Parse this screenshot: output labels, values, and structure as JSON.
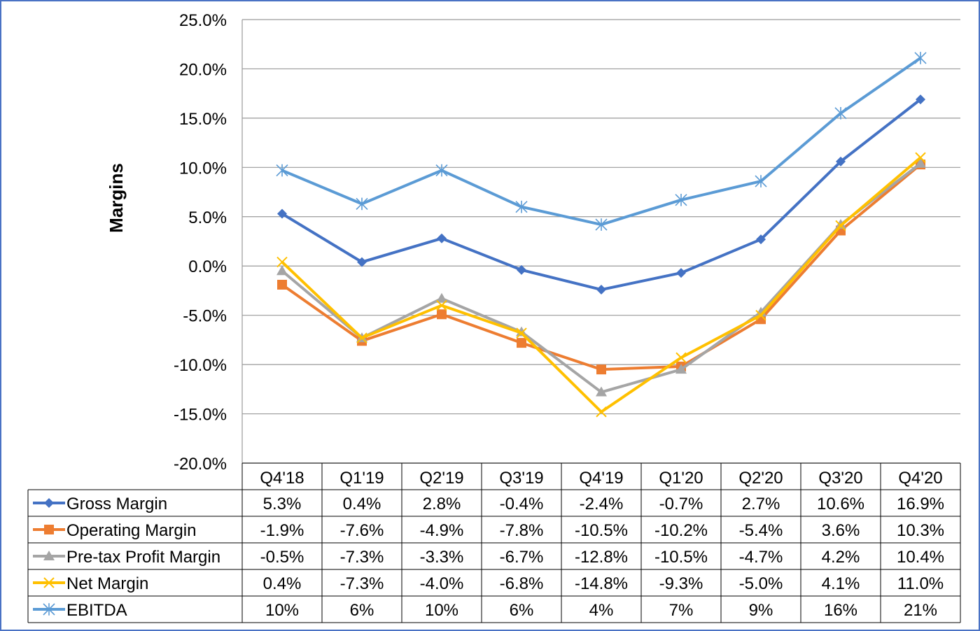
{
  "chart_data": {
    "type": "line",
    "ylabel": "Margins",
    "xlabel": "",
    "ylim": [
      -20,
      25
    ],
    "ytick_step": 5,
    "ytick_labels": [
      "25.0%",
      "20.0%",
      "15.0%",
      "10.0%",
      "5.0%",
      "0.0%",
      "-5.0%",
      "-10.0%",
      "-15.0%",
      "-20.0%"
    ],
    "grid": true,
    "legend_placement": "data table below chart",
    "categories": [
      "Q4'18",
      "Q1'19",
      "Q2'19",
      "Q3'19",
      "Q4'19",
      "Q1'20",
      "Q2'20",
      "Q3'20",
      "Q4'20"
    ],
    "series": [
      {
        "name": "Gross Margin",
        "color": "#4472c4",
        "marker": "diamond",
        "values": [
          5.3,
          0.4,
          2.8,
          -0.4,
          -2.4,
          -0.7,
          2.7,
          10.6,
          16.9
        ],
        "labels": [
          "5.3%",
          "0.4%",
          "2.8%",
          "-0.4%",
          "-2.4%",
          "-0.7%",
          "2.7%",
          "10.6%",
          "16.9%"
        ]
      },
      {
        "name": "Operating Margin",
        "color": "#ed7d31",
        "marker": "square",
        "values": [
          -1.9,
          -7.6,
          -4.9,
          -7.8,
          -10.5,
          -10.2,
          -5.4,
          3.6,
          10.3
        ],
        "labels": [
          "-1.9%",
          "-7.6%",
          "-4.9%",
          "-7.8%",
          "-10.5%",
          "-10.2%",
          "-5.4%",
          "3.6%",
          "10.3%"
        ]
      },
      {
        "name": "Pre-tax Profit Margin",
        "color": "#a5a5a5",
        "marker": "triangle",
        "values": [
          -0.5,
          -7.3,
          -3.3,
          -6.7,
          -12.8,
          -10.5,
          -4.7,
          4.2,
          10.4
        ],
        "labels": [
          "-0.5%",
          "-7.3%",
          "-3.3%",
          "-6.7%",
          "-12.8%",
          "-10.5%",
          "-4.7%",
          "4.2%",
          "10.4%"
        ]
      },
      {
        "name": "Net Margin",
        "color": "#ffc000",
        "marker": "x",
        "values": [
          0.4,
          -7.3,
          -4.0,
          -6.8,
          -14.8,
          -9.3,
          -5.0,
          4.1,
          11.0
        ],
        "labels": [
          "0.4%",
          "-7.3%",
          "-4.0%",
          "-6.8%",
          "-14.8%",
          "-9.3%",
          "-5.0%",
          "4.1%",
          "11.0%"
        ]
      },
      {
        "name": "EBITDA",
        "color": "#5b9bd5",
        "marker": "star",
        "values": [
          9.7,
          6.3,
          9.7,
          6.0,
          4.2,
          6.7,
          8.6,
          15.5,
          21.1
        ],
        "labels": [
          "10%",
          "6%",
          "10%",
          "6%",
          "4%",
          "7%",
          "9%",
          "16%",
          "21%"
        ]
      }
    ]
  }
}
